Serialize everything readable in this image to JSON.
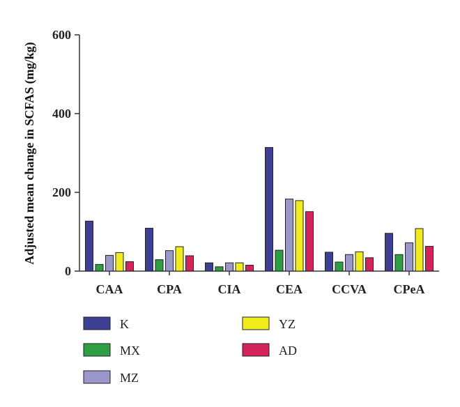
{
  "chart_data": {
    "type": "bar",
    "title": "",
    "xlabel": "",
    "ylabel": "Adjusted mean change in SCFAS (mg/kg)",
    "ylim": [
      0,
      600
    ],
    "yticks": [
      0,
      200,
      400,
      600
    ],
    "grid": false,
    "legend_placement": "bottom",
    "categories": [
      "CAA",
      "CPA",
      "CIA",
      "CEA",
      "CCVA",
      "CPeA"
    ],
    "series": [
      {
        "name": "K",
        "color": "#3d3f95",
        "values": [
          127,
          109,
          21,
          314,
          48,
          96
        ]
      },
      {
        "name": "MX",
        "color": "#2e9e45",
        "values": [
          17,
          29,
          11,
          53,
          23,
          42
        ]
      },
      {
        "name": "MZ",
        "color": "#9a97c9",
        "values": [
          40,
          52,
          21,
          183,
          42,
          72
        ]
      },
      {
        "name": "YZ",
        "color": "#f2ec1c",
        "values": [
          47,
          62,
          21,
          179,
          49,
          108
        ]
      },
      {
        "name": "AD",
        "color": "#d4245a",
        "values": [
          24,
          39,
          15,
          151,
          34,
          63
        ]
      }
    ]
  }
}
